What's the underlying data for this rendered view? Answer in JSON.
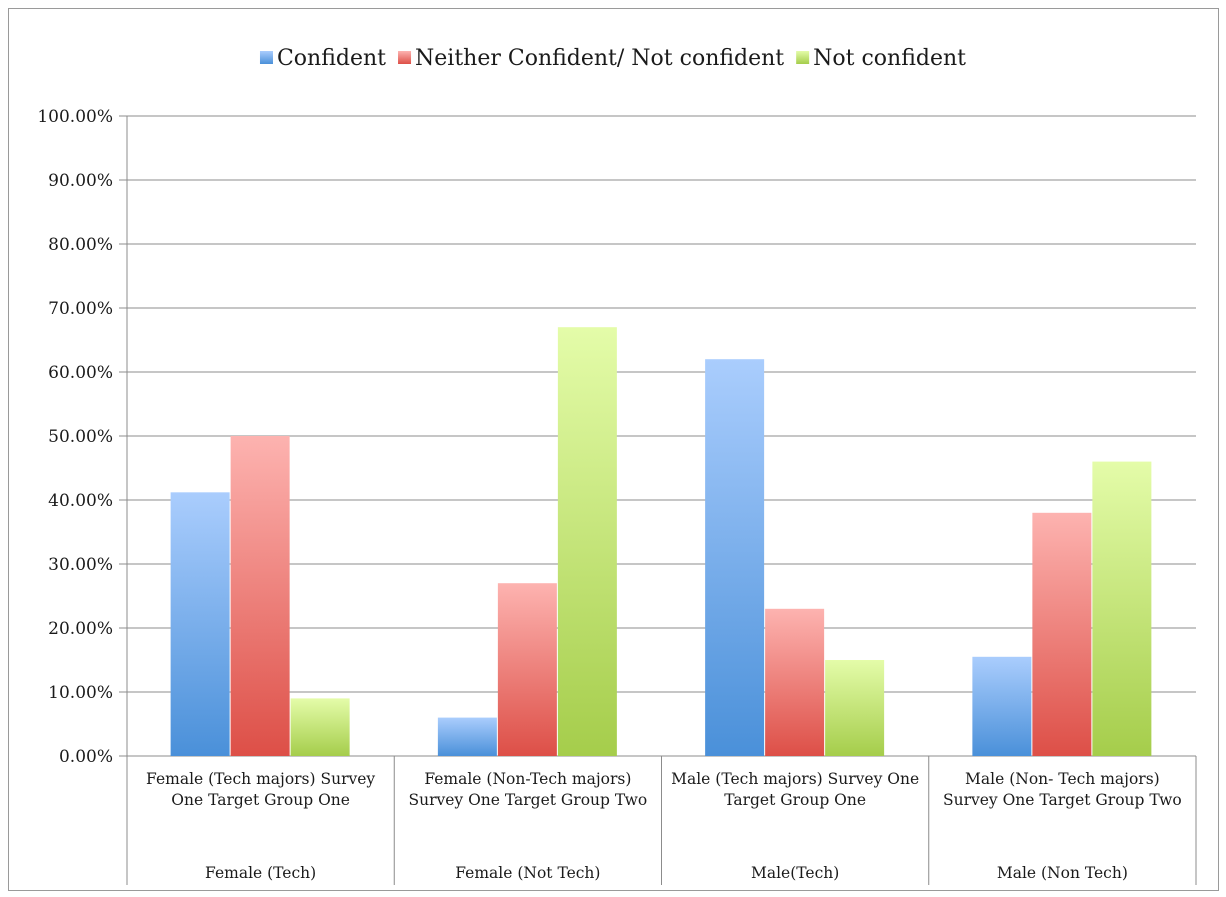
{
  "chart_data": {
    "type": "bar",
    "categories": [
      {
        "label": "Female (Tech majors) Survey One Target Group One",
        "group": "Female (Tech)"
      },
      {
        "label": "Female (Non-Tech majors) Survey One Target Group Two",
        "group": "Female (Not Tech)"
      },
      {
        "label": "Male (Tech majors) Survey One Target Group One",
        "group": "Male(Tech)"
      },
      {
        "label": "Male (Non- Tech majors) Survey One Target Group Two",
        "group": "Male (Non Tech)"
      }
    ],
    "series": [
      {
        "name": "Confident",
        "color": "#4a90d9",
        "values": [
          41.2,
          6.0,
          62.0,
          15.5
        ]
      },
      {
        "name": "Neither Confident/ Not confident",
        "color": "#e0504a",
        "values": [
          50.0,
          27.0,
          23.0,
          38.0
        ]
      },
      {
        "name": "Not confident",
        "color": "#a8cf4e",
        "values": [
          9.0,
          67.0,
          15.0,
          46.0
        ]
      }
    ],
    "ylim": [
      0,
      100
    ],
    "yticks": [
      "0.00%",
      "10.00%",
      "20.00%",
      "30.00%",
      "40.00%",
      "50.00%",
      "60.00%",
      "70.00%",
      "80.00%",
      "90.00%",
      "100.00%"
    ],
    "grid": true,
    "legend_position": "top"
  }
}
